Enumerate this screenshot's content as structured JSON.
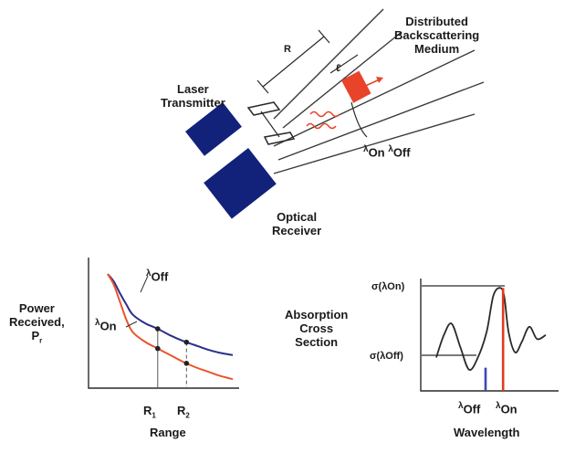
{
  "top_diagram": {
    "laser_line1": "Laser",
    "laser_line2": "Transmitter",
    "receiver_line1": "Optical",
    "receiver_line2": "Receiver",
    "medium_line1": "Distributed",
    "medium_line2": "Backscattering",
    "medium_line3": "Medium",
    "range_symbol": "R",
    "cell_symbol": "ℓ",
    "lambda_symbol": "λ",
    "on_label": "On",
    "off_label": "Off",
    "colors": {
      "device": "#12217a",
      "cell": "#e8442a",
      "beam": "#3a3a3a"
    }
  },
  "power_chart": {
    "ylabel_line1": "Power",
    "ylabel_line2": "Received,",
    "ylabel_line3_main": "P",
    "ylabel_line3_sub": "r",
    "xlabel": "Range",
    "tick_r1_main": "R",
    "tick_r1_sub": "1",
    "tick_r2_main": "R",
    "tick_r2_sub": "2",
    "lambda_symbol": "λ",
    "off_label": "Off",
    "on_label": "On"
  },
  "absorption_chart": {
    "ylabel_line1": "Absorption",
    "ylabel_line2": "Cross",
    "ylabel_line3": "Section",
    "xlabel": "Wavelength",
    "sigma_on": "σ(λOn)",
    "sigma_off": "σ(λOff)",
    "lambda_symbol": "λ",
    "off_label": "Off",
    "on_label": "On"
  },
  "chart_data": [
    {
      "type": "line",
      "title": "",
      "xlabel": "Range",
      "ylabel": "Power Received, Pr",
      "x": [
        0,
        0.05,
        0.1,
        0.15,
        0.2,
        0.3,
        0.4,
        0.5,
        0.6,
        0.7,
        0.8,
        0.9,
        1.0
      ],
      "series": [
        {
          "name": "λOff",
          "values": [
            1.0,
            0.93,
            0.82,
            0.72,
            0.63,
            0.55,
            0.5,
            0.44,
            0.39,
            0.35,
            0.31,
            0.28,
            0.26
          ],
          "color": "#2a2f8a"
        },
        {
          "name": "λOn",
          "values": [
            1.0,
            0.9,
            0.74,
            0.58,
            0.47,
            0.38,
            0.32,
            0.26,
            0.2,
            0.15,
            0.11,
            0.07,
            0.04
          ],
          "color": "#e8552a"
        }
      ],
      "markers": [
        {
          "x": 0.4,
          "label": "R1"
        },
        {
          "x": 0.63,
          "label": "R2"
        }
      ],
      "ylim": [
        0,
        1.1
      ],
      "grid": false
    },
    {
      "type": "line",
      "title": "",
      "xlabel": "Wavelength",
      "ylabel": "Absorption Cross Section",
      "x": [
        0,
        0.07,
        0.14,
        0.22,
        0.3,
        0.38,
        0.46,
        0.52,
        0.58,
        0.62,
        0.66,
        0.72,
        0.78,
        0.85,
        0.92,
        1.0
      ],
      "series": [
        {
          "name": "σ",
          "values": [
            0.3,
            0.52,
            0.63,
            0.4,
            0.18,
            0.3,
            0.55,
            0.9,
            0.98,
            0.9,
            0.55,
            0.35,
            0.45,
            0.6,
            0.48,
            0.52
          ],
          "color": "#2a2a2a"
        }
      ],
      "lines": [
        {
          "x": 0.45,
          "label": "λOff",
          "color": "#3b46b5",
          "top": 0.2
        },
        {
          "x": 0.61,
          "label": "λOn",
          "color": "#e23a1f",
          "top": 0.98
        }
      ],
      "grid": false
    }
  ]
}
